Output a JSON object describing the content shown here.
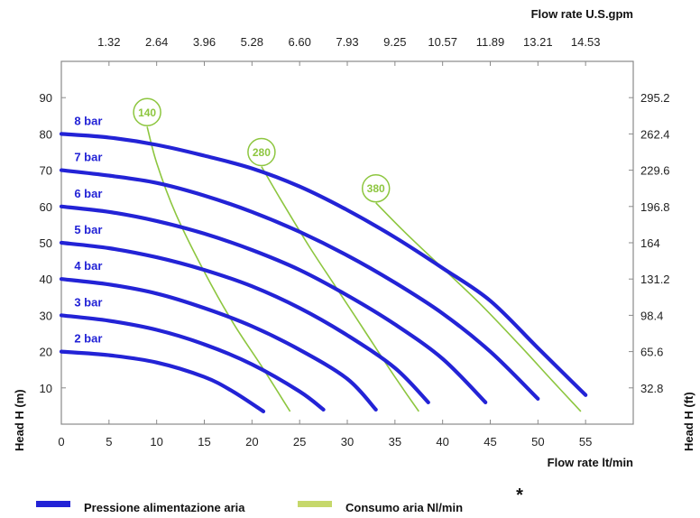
{
  "chart_data": {
    "type": "line",
    "xlabel": "Flow rate  lt/min",
    "x2label": "Flow rate U.S.gpm",
    "ylabel": "Head H (m)",
    "y2label": "Head H (ft)",
    "xlim": [
      0,
      60
    ],
    "ylim": [
      0,
      100
    ],
    "x_ticks": [
      "0",
      "5",
      "10",
      "15",
      "20",
      "25",
      "30",
      "35",
      "40",
      "45",
      "50",
      "55"
    ],
    "x_tick_values": [
      0,
      5,
      10,
      15,
      20,
      25,
      30,
      35,
      40,
      45,
      50,
      55
    ],
    "x2_ticks": [
      "1.32",
      "2.64",
      "3.96",
      "5.28",
      "6.60",
      "7.93",
      "9.25",
      "10.57",
      "11.89",
      "13.21",
      "14.53"
    ],
    "x2_tick_values": [
      5,
      10,
      15,
      20,
      25,
      30,
      35,
      40,
      45,
      50,
      55
    ],
    "y_ticks": [
      "10",
      "20",
      "30",
      "40",
      "50",
      "60",
      "70",
      "80",
      "90"
    ],
    "y_tick_values": [
      10,
      20,
      30,
      40,
      50,
      60,
      70,
      80,
      90
    ],
    "y2_ticks": [
      "32.8",
      "65.6",
      "98.4",
      "131.2",
      "164",
      "196.8",
      "229.6",
      "262.4",
      "295.2"
    ],
    "grid": false,
    "legend_position": "bottom",
    "series": [
      {
        "name": "8 bar",
        "group": "pressure",
        "label_at": [
          0.6,
          82.5
        ],
        "points": [
          [
            0,
            80
          ],
          [
            5,
            79
          ],
          [
            10,
            77
          ],
          [
            15,
            74
          ],
          [
            20,
            70.5
          ],
          [
            25,
            65.5
          ],
          [
            30,
            59
          ],
          [
            35,
            51.5
          ],
          [
            40,
            43
          ],
          [
            45,
            34
          ],
          [
            50,
            21
          ],
          [
            55,
            8
          ]
        ]
      },
      {
        "name": "7 bar",
        "group": "pressure",
        "label_at": [
          0.6,
          72.5
        ],
        "points": [
          [
            0,
            70
          ],
          [
            5,
            68.5
          ],
          [
            10,
            66.5
          ],
          [
            15,
            63
          ],
          [
            20,
            58.5
          ],
          [
            25,
            53
          ],
          [
            30,
            46.5
          ],
          [
            35,
            39
          ],
          [
            40,
            30.5
          ],
          [
            45,
            20
          ],
          [
            50,
            7
          ]
        ]
      },
      {
        "name": "6 bar",
        "group": "pressure",
        "label_at": [
          0.6,
          62.5
        ],
        "points": [
          [
            0,
            60
          ],
          [
            5,
            58.5
          ],
          [
            10,
            56
          ],
          [
            15,
            52.5
          ],
          [
            20,
            48
          ],
          [
            25,
            42.5
          ],
          [
            30,
            35.5
          ],
          [
            35,
            27.5
          ],
          [
            40,
            18
          ],
          [
            44.5,
            6
          ]
        ]
      },
      {
        "name": "5 bar",
        "group": "pressure",
        "label_at": [
          0.6,
          52.5
        ],
        "points": [
          [
            0,
            50
          ],
          [
            5,
            48.5
          ],
          [
            10,
            46
          ],
          [
            15,
            42.5
          ],
          [
            20,
            38
          ],
          [
            25,
            32
          ],
          [
            30,
            24.5
          ],
          [
            35,
            15.5
          ],
          [
            38.5,
            6
          ]
        ]
      },
      {
        "name": "4 bar",
        "group": "pressure",
        "label_at": [
          0.6,
          42.5
        ],
        "points": [
          [
            0,
            40
          ],
          [
            5,
            38.5
          ],
          [
            10,
            36
          ],
          [
            15,
            32
          ],
          [
            20,
            27
          ],
          [
            25,
            20.5
          ],
          [
            30,
            12.5
          ],
          [
            33,
            4
          ]
        ]
      },
      {
        "name": "3 bar",
        "group": "pressure",
        "label_at": [
          0.6,
          32.5
        ],
        "points": [
          [
            0,
            30
          ],
          [
            5,
            28.5
          ],
          [
            10,
            26
          ],
          [
            15,
            22
          ],
          [
            20,
            16.5
          ],
          [
            25,
            9
          ],
          [
            27.5,
            4
          ]
        ]
      },
      {
        "name": "2 bar",
        "group": "pressure",
        "label_at": [
          0.6,
          22.5
        ],
        "points": [
          [
            0,
            20
          ],
          [
            5,
            19
          ],
          [
            10,
            17
          ],
          [
            15,
            13
          ],
          [
            18,
            9
          ],
          [
            21.2,
            3.5
          ]
        ]
      },
      {
        "name": "140",
        "group": "air",
        "label_at": [
          9,
          86
        ],
        "points": [
          [
            9,
            82
          ],
          [
            10,
            72
          ],
          [
            12,
            58
          ],
          [
            15,
            42
          ],
          [
            18,
            28
          ],
          [
            21,
            16
          ],
          [
            24,
            3.5
          ]
        ]
      },
      {
        "name": "280",
        "group": "air",
        "label_at": [
          21,
          75
        ],
        "points": [
          [
            21,
            71
          ],
          [
            23,
            62
          ],
          [
            26,
            49
          ],
          [
            29,
            37
          ],
          [
            32,
            25
          ],
          [
            35,
            13
          ],
          [
            37.5,
            3.5
          ]
        ]
      },
      {
        "name": "380",
        "group": "air",
        "label_at": [
          33,
          65
        ],
        "points": [
          [
            33,
            61
          ],
          [
            36,
            53
          ],
          [
            40,
            43
          ],
          [
            44,
            33
          ],
          [
            48,
            22
          ],
          [
            51.5,
            12
          ],
          [
            54.5,
            3.5
          ]
        ]
      }
    ],
    "legend": [
      {
        "label": "Pressione alimentazione aria",
        "color": "#2323d6"
      },
      {
        "label": "Consumo aria Nl/min",
        "color": "#c6d86b"
      }
    ],
    "footnote": "*"
  },
  "colors": {
    "pressure": "#2323d6",
    "air": "#8dc63f",
    "air_legend": "#c6d86b",
    "frame": "#8a8a8a"
  }
}
